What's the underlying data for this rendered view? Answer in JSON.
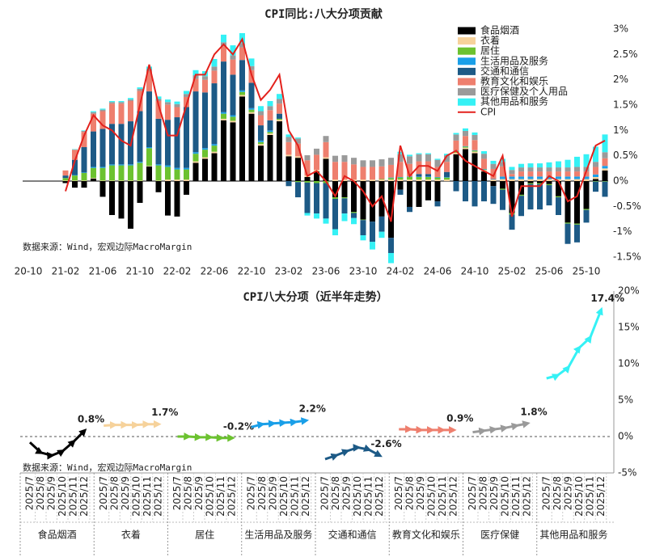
{
  "chart_data": [
    {
      "type": "bar",
      "stacked": true,
      "title": "CPI同比:八大分项贡献",
      "annotation": "数据来源：Wind，宏观边际MacroMargin",
      "legend": "top-right",
      "categories": [
        "20-10",
        null,
        null,
        null,
        "21-02",
        null,
        null,
        null,
        "21-06",
        null,
        null,
        null,
        "21-10",
        null,
        null,
        null,
        "22-02",
        null,
        null,
        null,
        "22-06",
        null,
        null,
        null,
        "22-10",
        null,
        null,
        null,
        "23-02",
        null,
        null,
        null,
        "23-06",
        null,
        null,
        null,
        "23-10",
        null,
        null,
        null,
        "24-02",
        null,
        null,
        null,
        "24-06",
        null,
        null,
        null,
        "24-10",
        null,
        null,
        null,
        "25-02",
        null,
        null,
        null,
        "25-06",
        null,
        null,
        null,
        "25-10",
        null,
        null
      ],
      "ylim": [
        -1.5,
        3
      ],
      "yticks": [
        {
          "value": -1.5,
          "label": "-1.5%"
        },
        {
          "value": -1,
          "label": "-1%"
        },
        {
          "value": -0.5,
          "label": "-0.5%"
        },
        {
          "value": 0,
          "label": "0%"
        },
        {
          "value": 0.5,
          "label": "0.5%"
        },
        {
          "value": 1,
          "label": "1%"
        },
        {
          "value": 1.5,
          "label": "1.5%"
        },
        {
          "value": 2,
          "label": "2%"
        },
        {
          "value": 2.5,
          "label": "2.5%"
        },
        {
          "value": 3,
          "label": "3%"
        }
      ],
      "series": [
        {
          "name": "食品烟酒",
          "color": "#000000",
          "values": [
            null,
            null,
            null,
            null,
            -0.04,
            -0.13,
            -0.13,
            0.05,
            -0.31,
            -0.67,
            -0.74,
            -0.94,
            -0.43,
            0.29,
            -0.22,
            -0.68,
            -0.7,
            -0.27,
            0.36,
            0.44,
            0.55,
            1.2,
            1.16,
            1.67,
            1.33,
            0.7,
            0.91,
            1.18,
            0.49,
            0.46,
            0.08,
            0.19,
            0.44,
            -0.32,
            -0.32,
            -0.61,
            -0.76,
            -0.8,
            -0.7,
            -1.12,
            -0.17,
            -0.51,
            -0.51,
            -0.38,
            -0.4,
            0.0,
            0.53,
            0.63,
            0.55,
            0.19,
            -0.1,
            -0.15,
            -0.63,
            -0.27,
            -0.04,
            -0.04,
            -0.06,
            -0.3,
            -0.82,
            -0.84,
            -0.55,
            0.04,
            0.21
          ]
        },
        {
          "name": "衣着",
          "color": "#f6d29b",
          "values": [
            null,
            null,
            null,
            null,
            0.01,
            0.01,
            0.01,
            0.01,
            0.01,
            0.01,
            0.01,
            0.01,
            0.01,
            0.01,
            0.01,
            0.03,
            0.03,
            0.03,
            0.03,
            0.03,
            0.03,
            0.03,
            0.03,
            0.03,
            0.03,
            0.03,
            0.03,
            0.03,
            0.03,
            0.03,
            0.03,
            0.03,
            0.03,
            0.03,
            0.03,
            0.03,
            0.03,
            0.03,
            0.03,
            0.03,
            0.03,
            0.03,
            0.03,
            0.03,
            0.03,
            0.03,
            0.03,
            0.03,
            0.03,
            0.03,
            0.03,
            0.04,
            0.04,
            0.04,
            0.04,
            0.04,
            0.04,
            0.04,
            0.04,
            0.04,
            0.04,
            0.04,
            0.04
          ]
        },
        {
          "name": "居住",
          "color": "#6cc230",
          "values": [
            null,
            null,
            null,
            null,
            0.05,
            0.1,
            0.15,
            0.2,
            0.25,
            0.3,
            0.3,
            0.3,
            0.35,
            0.35,
            0.3,
            0.25,
            0.2,
            0.2,
            0.15,
            0.15,
            0.12,
            0.1,
            0.08,
            0.06,
            0.05,
            0.04,
            0.03,
            0.02,
            0.0,
            -0.02,
            -0.03,
            -0.04,
            -0.04,
            -0.03,
            -0.02,
            -0.02,
            -0.01,
            0.0,
            0.01,
            0.03,
            0.04,
            0.05,
            0.05,
            0.05,
            0.04,
            0.04,
            0.03,
            0.02,
            0.02,
            0.01,
            0.0,
            -0.02,
            -0.03,
            -0.02,
            -0.02,
            -0.02,
            -0.02,
            -0.02,
            -0.02,
            -0.02,
            -0.02,
            -0.01,
            -0.01
          ]
        },
        {
          "name": "生活用品及服务",
          "color": "#1a9fe8",
          "values": [
            null,
            null,
            null,
            null,
            0.0,
            0.01,
            0.01,
            0.02,
            0.02,
            0.02,
            0.02,
            0.02,
            0.02,
            0.02,
            0.02,
            0.03,
            0.03,
            0.03,
            0.03,
            0.03,
            0.03,
            0.03,
            0.03,
            0.03,
            0.03,
            0.03,
            0.03,
            0.0,
            0.0,
            0.0,
            0.0,
            0.0,
            0.0,
            0.0,
            0.0,
            0.0,
            0.0,
            0.0,
            0.0,
            0.01,
            0.01,
            0.01,
            0.01,
            0.01,
            0.01,
            0.01,
            0.01,
            0.01,
            0.01,
            0.01,
            0.01,
            0.05,
            0.05,
            0.05,
            0.05,
            0.05,
            0.05,
            0.05,
            0.05,
            0.05,
            0.05,
            0.05,
            0.05
          ]
        },
        {
          "name": "交通和通信",
          "color": "#1d5a86",
          "values": [
            null,
            null,
            null,
            null,
            0.05,
            0.3,
            0.5,
            0.7,
            0.75,
            0.8,
            0.8,
            0.85,
            1.0,
            1.1,
            0.9,
            0.9,
            1.0,
            1.2,
            1.2,
            1.1,
            1.2,
            1.0,
            0.8,
            0.6,
            0.5,
            0.3,
            0.2,
            0.1,
            -0.1,
            -0.3,
            -0.6,
            -0.6,
            -0.7,
            -0.6,
            -0.3,
            -0.1,
            -0.3,
            -0.4,
            -0.3,
            -0.3,
            -0.1,
            -0.1,
            0.05,
            0.05,
            -0.1,
            0.1,
            -0.2,
            -0.4,
            -0.5,
            -0.4,
            -0.35,
            -0.4,
            -0.3,
            -0.4,
            -0.5,
            -0.5,
            -0.4,
            -0.35,
            -0.4,
            -0.35,
            -0.25,
            -0.2,
            -0.3
          ]
        },
        {
          "name": "教育文化和娱乐",
          "color": "#ee7f6e",
          "values": [
            null,
            null,
            null,
            null,
            0.1,
            0.2,
            0.3,
            0.35,
            0.35,
            0.4,
            0.4,
            0.4,
            0.4,
            0.4,
            0.35,
            0.3,
            0.2,
            0.2,
            0.25,
            0.25,
            0.25,
            0.3,
            0.3,
            0.25,
            0.25,
            0.2,
            0.2,
            0.2,
            0.25,
            0.25,
            0.3,
            0.3,
            0.3,
            0.35,
            0.35,
            0.3,
            0.25,
            0.25,
            0.25,
            0.25,
            0.3,
            0.25,
            0.25,
            0.25,
            0.2,
            0.2,
            0.2,
            0.2,
            0.2,
            0.2,
            0.2,
            0.2,
            0.05,
            0.1,
            0.1,
            0.1,
            0.1,
            0.1,
            0.1,
            0.1,
            0.1,
            0.15,
            0.15
          ]
        },
        {
          "name": "医疗保健及个人用品",
          "color": "#9a9a9a",
          "values": [
            null,
            null,
            null,
            null,
            0.0,
            0.0,
            0.02,
            0.03,
            0.03,
            0.03,
            0.03,
            0.03,
            0.04,
            0.04,
            0.04,
            0.05,
            0.06,
            0.06,
            0.07,
            0.07,
            0.08,
            0.08,
            0.08,
            0.08,
            0.08,
            0.08,
            0.08,
            0.09,
            0.1,
            0.1,
            0.1,
            0.12,
            0.12,
            0.12,
            0.13,
            0.13,
            0.13,
            0.13,
            0.14,
            0.14,
            0.15,
            0.15,
            0.14,
            0.14,
            0.14,
            0.13,
            0.12,
            0.1,
            0.1,
            0.1,
            0.1,
            0.09,
            0.08,
            0.08,
            0.08,
            0.08,
            0.08,
            0.08,
            0.08,
            0.09,
            0.09,
            0.1,
            0.12
          ]
        },
        {
          "name": "其他用品和服务",
          "color": "#35f1f5",
          "values": [
            null,
            null,
            null,
            null,
            0.0,
            0.01,
            0.01,
            0.02,
            0.02,
            0.02,
            0.02,
            0.03,
            0.03,
            0.05,
            0.05,
            0.05,
            0.05,
            0.06,
            0.1,
            0.1,
            0.15,
            0.15,
            0.2,
            0.2,
            0.15,
            0.1,
            0.1,
            0.1,
            0.05,
            0.02,
            -0.05,
            -0.1,
            -0.1,
            -0.12,
            -0.15,
            -0.12,
            -0.1,
            -0.15,
            -0.12,
            -0.2,
            0.05,
            0.03,
            0.02,
            0.02,
            0.02,
            0.03,
            0.03,
            0.05,
            0.05,
            0.05,
            0.06,
            0.06,
            0.06,
            0.07,
            0.08,
            0.08,
            0.1,
            0.12,
            0.15,
            0.2,
            0.25,
            0.3,
            0.35
          ]
        },
        {
          "name": "CPI",
          "type": "line",
          "color": "#e3211c",
          "values": [
            null,
            null,
            null,
            null,
            -0.2,
            0.4,
            0.9,
            1.3,
            1.1,
            1.0,
            0.8,
            0.7,
            1.5,
            2.3,
            1.5,
            0.9,
            0.9,
            1.5,
            2.1,
            2.1,
            2.5,
            2.7,
            2.5,
            2.8,
            2.1,
            1.6,
            1.8,
            2.1,
            1.0,
            0.7,
            0.1,
            0.2,
            0.0,
            -0.3,
            0.1,
            0.0,
            -0.2,
            -0.5,
            -0.3,
            -0.8,
            0.7,
            0.1,
            0.3,
            0.3,
            0.2,
            0.5,
            0.6,
            0.4,
            0.3,
            0.2,
            0.1,
            0.5,
            -0.7,
            -0.1,
            -0.1,
            -0.1,
            0.1,
            0.0,
            -0.4,
            -0.3,
            0.2,
            0.7,
            0.8
          ]
        }
      ]
    },
    {
      "type": "line",
      "facet": true,
      "title": "CPI八大分项（近半年走势）",
      "annotation": "数据来源：Wind，宏观边际MacroMargin",
      "categories": [
        "2025/7",
        "2025/8",
        "2025/9",
        "2025/10",
        "2025/11",
        "2025/12"
      ],
      "ylim": [
        -5,
        20
      ],
      "yticks": [
        {
          "value": -5,
          "label": "-5%"
        },
        {
          "value": 0,
          "label": "0%"
        },
        {
          "value": 5,
          "label": "5%"
        },
        {
          "value": 10,
          "label": "10%"
        },
        {
          "value": 15,
          "label": "15%"
        },
        {
          "value": 20,
          "label": "20%"
        }
      ],
      "series": [
        {
          "name": "食品烟酒",
          "color": "#000000",
          "values": [
            -0.8,
            -2.2,
            -2.6,
            -2.0,
            -0.7,
            0.8
          ],
          "value_labels": [
            null,
            null,
            null,
            null,
            null,
            "0.8%"
          ]
        },
        {
          "name": "衣着",
          "color": "#f6d29b",
          "values": [
            1.5,
            1.6,
            1.6,
            1.6,
            1.7,
            1.7
          ],
          "value_labels": [
            null,
            null,
            null,
            null,
            null,
            "1.7%"
          ]
        },
        {
          "name": "居住",
          "color": "#6cc230",
          "values": [
            0.0,
            0.0,
            -0.1,
            -0.1,
            -0.2,
            -0.2
          ],
          "value_labels": [
            null,
            null,
            null,
            null,
            null,
            "-0.2%"
          ]
        },
        {
          "name": "生活用品及服务",
          "color": "#1a9fe8",
          "values": [
            1.3,
            1.7,
            1.8,
            1.9,
            2.0,
            2.2
          ],
          "value_labels": [
            null,
            null,
            null,
            null,
            null,
            "2.2%"
          ]
        },
        {
          "name": "交通和通信",
          "color": "#1d5a86",
          "values": [
            -3.1,
            -2.6,
            -2.0,
            -1.5,
            -1.8,
            -2.6
          ],
          "value_labels": [
            null,
            null,
            null,
            null,
            null,
            "-2.6%"
          ]
        },
        {
          "name": "教育文化和娱乐",
          "color": "#ee7f6e",
          "values": [
            1.0,
            1.0,
            0.9,
            0.9,
            0.9,
            0.9
          ],
          "value_labels": [
            null,
            null,
            null,
            null,
            null,
            "0.9%"
          ]
        },
        {
          "name": "医疗保健",
          "color": "#9a9a9a",
          "values": [
            0.6,
            0.8,
            1.0,
            1.2,
            1.5,
            1.8
          ],
          "value_labels": [
            null,
            null,
            null,
            null,
            null,
            "1.8%"
          ]
        },
        {
          "name": "其他用品和服务",
          "color": "#35f1f5",
          "values": [
            8.0,
            8.4,
            9.5,
            12.2,
            13.6,
            17.4
          ],
          "value_labels": [
            null,
            null,
            null,
            null,
            null,
            "17.4%"
          ]
        }
      ]
    }
  ]
}
